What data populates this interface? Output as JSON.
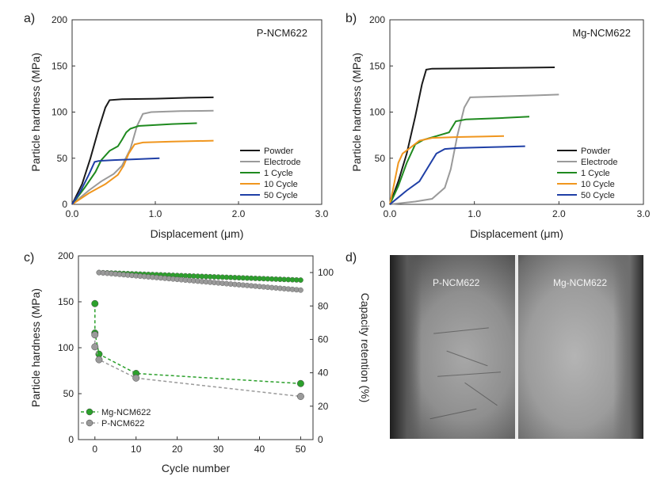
{
  "colors": {
    "powder": "#1a1a1a",
    "electrode": "#9a9a9a",
    "cycle1": "#1f8a1f",
    "cycle10": "#f0961e",
    "cycle50": "#1f3fa6",
    "mg_series": "#2ca02c",
    "p_series": "#9a9a9a"
  },
  "chart_data": [
    {
      "id": "a",
      "panel_label": "a)",
      "type": "line",
      "title": "P-NCM622",
      "xlabel": "Displacement (μm)",
      "ylabel": "Particle hardness (MPa)",
      "xlim": [
        0,
        3.0
      ],
      "ylim": [
        0,
        200
      ],
      "xticks": [
        "0.0",
        "1.0",
        "2.0",
        "3.0"
      ],
      "yticks": [
        "0",
        "50",
        "100",
        "150",
        "200"
      ],
      "legend_position": "lower-right",
      "series": [
        {
          "name": "Powder",
          "color": "#1a1a1a",
          "points": [
            [
              0,
              0
            ],
            [
              0.12,
              22
            ],
            [
              0.22,
              50
            ],
            [
              0.32,
              82
            ],
            [
              0.4,
              105
            ],
            [
              0.45,
              113
            ],
            [
              0.6,
              114
            ],
            [
              1.0,
              114.5
            ],
            [
              1.4,
              115.5
            ],
            [
              1.7,
              116
            ]
          ]
        },
        {
          "name": "Electrode",
          "color": "#9a9a9a",
          "points": [
            [
              0,
              0
            ],
            [
              0.2,
              15
            ],
            [
              0.35,
              25
            ],
            [
              0.5,
              33
            ],
            [
              0.6,
              42
            ],
            [
              0.7,
              60
            ],
            [
              0.78,
              85
            ],
            [
              0.85,
              98
            ],
            [
              0.95,
              100
            ],
            [
              1.3,
              101
            ],
            [
              1.7,
              101.5
            ]
          ]
        },
        {
          "name": "1 Cycle",
          "color": "#1f8a1f",
          "points": [
            [
              0,
              0
            ],
            [
              0.15,
              18
            ],
            [
              0.28,
              35
            ],
            [
              0.35,
              48
            ],
            [
              0.45,
              58
            ],
            [
              0.55,
              63
            ],
            [
              0.6,
              70
            ],
            [
              0.65,
              78
            ],
            [
              0.7,
              82
            ],
            [
              0.8,
              85
            ],
            [
              1.2,
              87
            ],
            [
              1.5,
              88
            ]
          ]
        },
        {
          "name": "10 Cycle",
          "color": "#f0961e",
          "points": [
            [
              0,
              0
            ],
            [
              0.2,
              12
            ],
            [
              0.4,
              22
            ],
            [
              0.55,
              32
            ],
            [
              0.62,
              42
            ],
            [
              0.68,
              55
            ],
            [
              0.75,
              65
            ],
            [
              0.85,
              67
            ],
            [
              1.2,
              68
            ],
            [
              1.7,
              69
            ]
          ]
        },
        {
          "name": "50 Cycle",
          "color": "#1f3fa6",
          "points": [
            [
              0,
              0
            ],
            [
              0.1,
              14
            ],
            [
              0.2,
              32
            ],
            [
              0.27,
              46
            ],
            [
              0.32,
              47
            ],
            [
              0.5,
              48
            ],
            [
              0.8,
              49
            ],
            [
              1.05,
              50
            ]
          ]
        }
      ]
    },
    {
      "id": "b",
      "panel_label": "b)",
      "type": "line",
      "title": "Mg-NCM622",
      "xlabel": "Displacement (μm)",
      "ylabel": "Particle hardness (MPa)",
      "xlim": [
        0,
        3.0
      ],
      "ylim": [
        0,
        200
      ],
      "xticks": [
        "0.0",
        "1.0",
        "2.0",
        "3.0"
      ],
      "yticks": [
        "0",
        "50",
        "100",
        "150",
        "200"
      ],
      "legend_position": "lower-right",
      "series": [
        {
          "name": "Powder",
          "color": "#1a1a1a",
          "points": [
            [
              0,
              0
            ],
            [
              0.1,
              25
            ],
            [
              0.2,
              55
            ],
            [
              0.3,
              95
            ],
            [
              0.38,
              130
            ],
            [
              0.43,
              146
            ],
            [
              0.5,
              147
            ],
            [
              1.0,
              147.5
            ],
            [
              1.5,
              148
            ],
            [
              1.95,
              148.5
            ]
          ]
        },
        {
          "name": "Electrode",
          "color": "#9a9a9a",
          "points": [
            [
              0,
              0
            ],
            [
              0.3,
              3
            ],
            [
              0.5,
              6
            ],
            [
              0.65,
              18
            ],
            [
              0.72,
              38
            ],
            [
              0.8,
              75
            ],
            [
              0.88,
              105
            ],
            [
              0.95,
              116
            ],
            [
              1.3,
              117
            ],
            [
              1.7,
              118
            ],
            [
              2.0,
              119
            ]
          ]
        },
        {
          "name": "1 Cycle",
          "color": "#1f8a1f",
          "points": [
            [
              0,
              0
            ],
            [
              0.1,
              20
            ],
            [
              0.2,
              45
            ],
            [
              0.3,
              65
            ],
            [
              0.4,
              70
            ],
            [
              0.55,
              74
            ],
            [
              0.7,
              78
            ],
            [
              0.78,
              90
            ],
            [
              0.9,
              92
            ],
            [
              1.3,
              93.5
            ],
            [
              1.65,
              95
            ]
          ]
        },
        {
          "name": "10 Cycle",
          "color": "#f0961e",
          "points": [
            [
              0,
              0
            ],
            [
              0.05,
              22
            ],
            [
              0.1,
              45
            ],
            [
              0.15,
              55
            ],
            [
              0.25,
              62
            ],
            [
              0.35,
              69
            ],
            [
              0.5,
              72
            ],
            [
              0.8,
              73
            ],
            [
              1.1,
              73.5
            ],
            [
              1.35,
              74
            ]
          ]
        },
        {
          "name": "50 Cycle",
          "color": "#1f3fa6",
          "points": [
            [
              0,
              0
            ],
            [
              0.2,
              15
            ],
            [
              0.35,
              25
            ],
            [
              0.45,
              40
            ],
            [
              0.55,
              55
            ],
            [
              0.65,
              60
            ],
            [
              0.8,
              61
            ],
            [
              1.2,
              62
            ],
            [
              1.6,
              63
            ]
          ]
        }
      ]
    },
    {
      "id": "c",
      "panel_label": "c)",
      "type": "scatter",
      "xlabel": "Cycle number",
      "ylabel": "Particle hardness (MPa)",
      "y2label": "Capacity retention (%)",
      "xlim": [
        -4,
        53
      ],
      "ylim": [
        0,
        200
      ],
      "y2lim": [
        0,
        110
      ],
      "xticks": [
        0,
        10,
        20,
        30,
        40,
        50
      ],
      "yticks": [
        0,
        50,
        100,
        150,
        200
      ],
      "y2ticks": [
        0,
        20,
        40,
        60,
        80,
        100
      ],
      "legend_position": "lower-left",
      "hardness_series": [
        {
          "name": "Mg-NCM622",
          "color": "#2ca02c",
          "points": [
            [
              0,
              148
            ],
            [
              0,
              116
            ],
            [
              1,
              93
            ],
            [
              10,
              72
            ],
            [
              50,
              61
            ]
          ]
        },
        {
          "name": "P-NCM622",
          "color": "#9a9a9a",
          "points": [
            [
              0,
              114
            ],
            [
              0,
              101
            ],
            [
              1,
              87
            ],
            [
              10,
              67
            ],
            [
              50,
              47
            ]
          ]
        }
      ],
      "retention_series": [
        {
          "name": "Mg-NCM622 retention",
          "color": "#2ca02c",
          "start": [
            1,
            100
          ],
          "end": [
            50,
            95.5
          ],
          "count": 50
        },
        {
          "name": "P-NCM622 retention",
          "color": "#9a9a9a",
          "start": [
            1,
            100
          ],
          "end": [
            50,
            89.5
          ],
          "count": 50
        }
      ]
    }
  ],
  "panel_d": {
    "label": "d)",
    "left_label": "P-NCM622",
    "right_label": "Mg-NCM622"
  }
}
